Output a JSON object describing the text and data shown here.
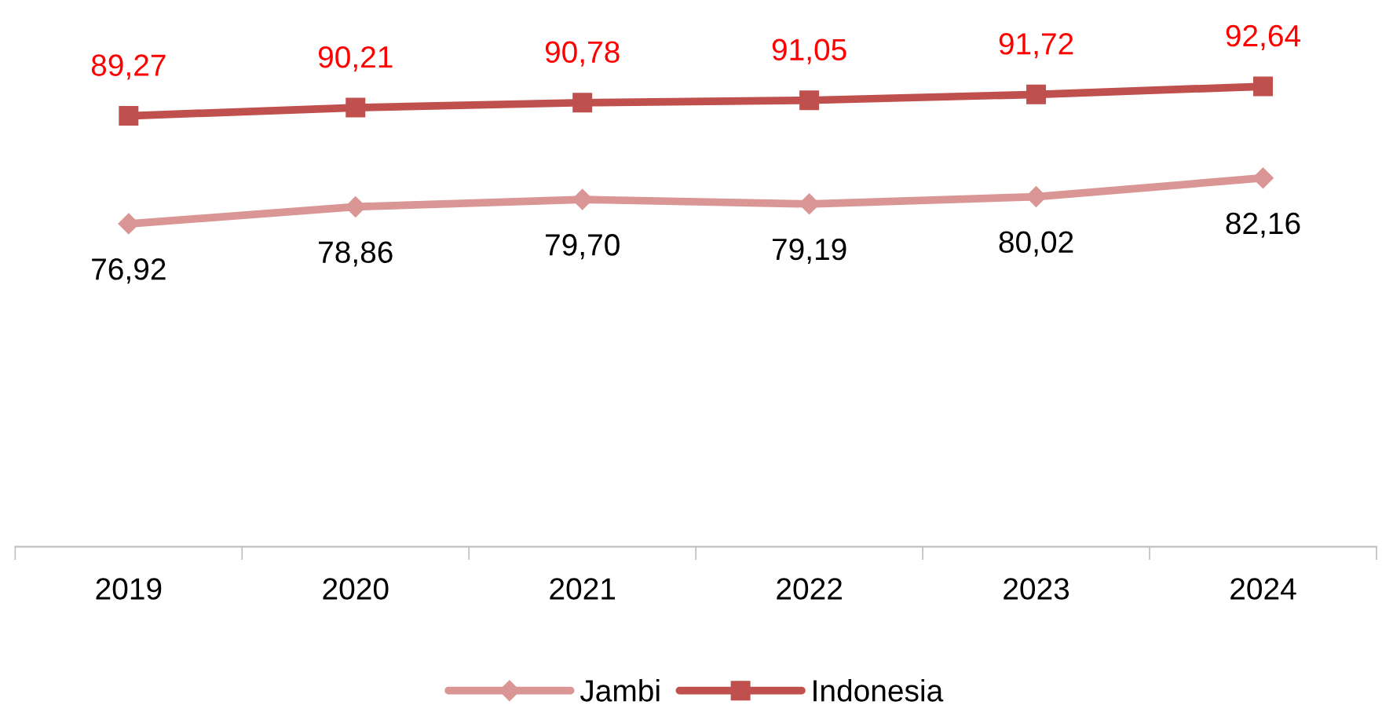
{
  "chart_data": {
    "type": "line",
    "categories": [
      "2019",
      "2020",
      "2021",
      "2022",
      "2023",
      "2024"
    ],
    "series": [
      {
        "name": "Jambi",
        "color": "#d99694",
        "marker": "diamond",
        "values": [
          76.92,
          78.86,
          79.7,
          79.19,
          80.02,
          82.16
        ],
        "value_labels": [
          "76,92",
          "78,86",
          "79,70",
          "79,19",
          "80,02",
          "82,16"
        ]
      },
      {
        "name": "Indonesia",
        "color": "#c0504d",
        "marker": "square",
        "values": [
          89.27,
          90.21,
          90.78,
          91.05,
          91.72,
          92.64
        ],
        "value_labels": [
          "89,27",
          "90,21",
          "90,78",
          "91,05",
          "91,72",
          "92,64"
        ]
      }
    ],
    "tick_labels": "x",
    "grid": false,
    "legend": "bottom",
    "line_style": "solid"
  }
}
